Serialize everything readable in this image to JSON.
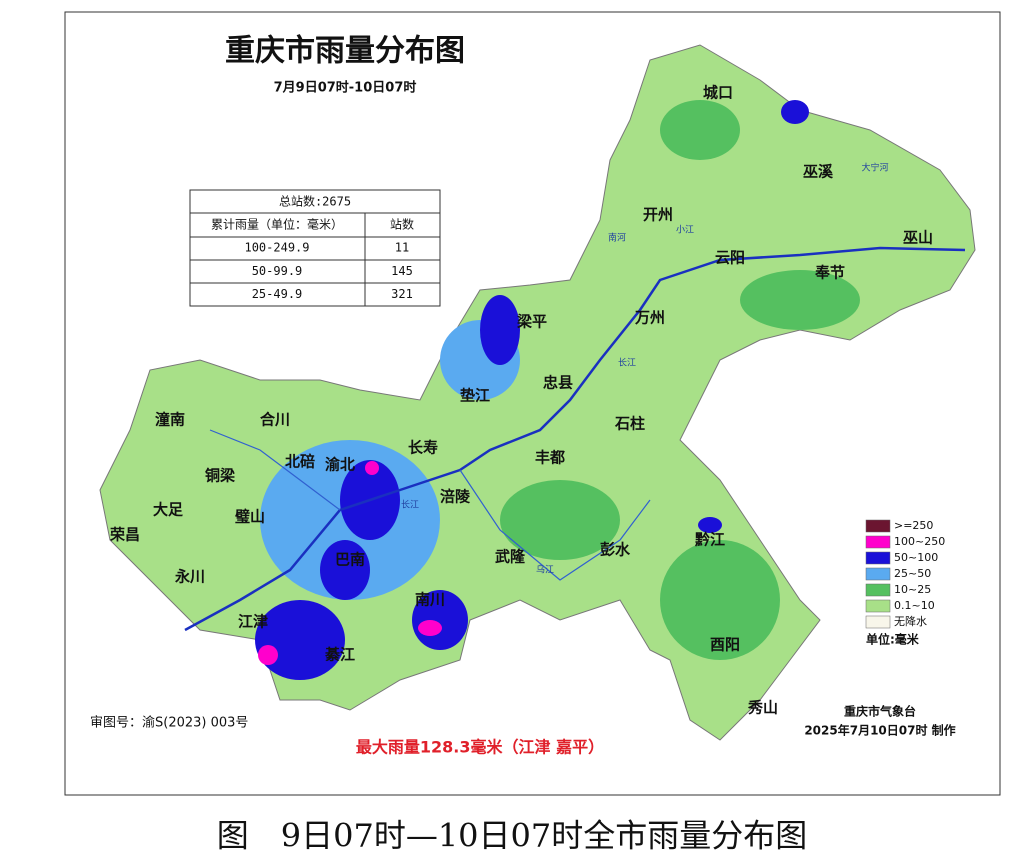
{
  "header": {
    "title": "重庆市雨量分布图",
    "subtitle": "7月9日07时-10日07时"
  },
  "table": {
    "total": "总站数:2675",
    "headers": [
      "累计雨量（单位：毫米）",
      "站数"
    ],
    "rows": [
      [
        "100-249.9",
        "11"
      ],
      [
        "50-99.9",
        "145"
      ],
      [
        "25-49.9",
        "321"
      ]
    ]
  },
  "legend": {
    "items": [
      {
        "label": ">=250",
        "color": "#6b1530"
      },
      {
        "label": "100~250",
        "color": "#ff00cc"
      },
      {
        "label": "50~100",
        "color": "#1a10d8"
      },
      {
        "label": "25~50",
        "color": "#5aaaf0"
      },
      {
        "label": "10~25",
        "color": "#55c060"
      },
      {
        "label": "0.1~10",
        "color": "#a8e088"
      },
      {
        "label": "无降水",
        "color": "#f8f6ea"
      }
    ],
    "unit": "单位:毫米"
  },
  "places": [
    "城口",
    "巫溪",
    "开州",
    "巫山",
    "云阳",
    "奉节",
    "梁平",
    "万州",
    "垫江",
    "忠县",
    "石柱",
    "潼南",
    "合川",
    "长寿",
    "丰都",
    "铜梁",
    "北碚",
    "渝北",
    "涪陵",
    "大足",
    "璧山",
    "荣昌",
    "巴南",
    "武隆",
    "彭水",
    "黔江",
    "永川",
    "南川",
    "江津",
    "綦江",
    "酉阳",
    "秀山"
  ],
  "rivers": [
    "大宁河",
    "南河",
    "小江",
    "长江",
    "长江",
    "乌江"
  ],
  "footer": {
    "approval": "审图号：渝S(2023) 003号",
    "max": "最大雨量128.3毫米（江津 嘉平）",
    "agency": "重庆市气象台",
    "made": "2025年7月10日07时 制作"
  },
  "caption": "图　9日07时—10日07时全市雨量分布图"
}
